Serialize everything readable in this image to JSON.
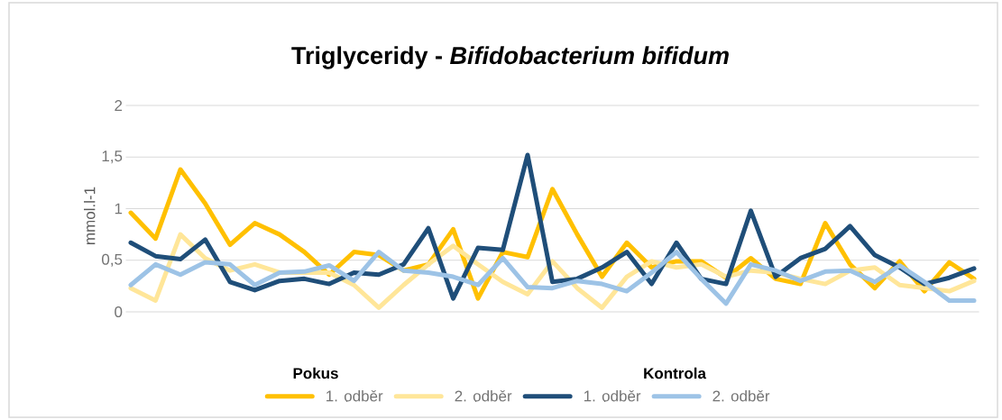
{
  "chart_data": {
    "type": "line",
    "title": "Triglyceridy - *Bifidobacterium  bifidum*",
    "ylabel": "mmol.l-1",
    "categories": [
      null,
      null,
      null,
      null,
      null,
      null,
      null,
      null,
      null,
      null,
      null,
      null,
      null,
      null,
      null,
      null,
      null,
      null,
      null,
      null,
      null,
      null,
      null,
      null,
      null,
      null,
      null,
      null,
      null,
      null,
      null,
      null,
      null,
      null,
      null
    ],
    "series": [
      {
        "name": "1. odběr",
        "color": "#ffc000",
        "values": [
          0.96,
          0.71,
          1.38,
          1.05,
          0.65,
          0.86,
          0.75,
          0.58,
          0.36,
          0.58,
          0.55,
          0.4,
          0.46,
          0.8,
          0.13,
          0.58,
          0.53,
          1.19,
          0.75,
          0.34,
          0.67,
          0.43,
          0.49,
          0.49,
          0.33,
          0.52,
          0.32,
          0.27,
          0.86,
          0.46,
          0.23,
          0.49,
          0.2,
          0.48,
          0.32
        ]
      },
      {
        "name": "2. odběr",
        "color": "#ffe699",
        "values": [
          0.23,
          0.11,
          0.75,
          0.52,
          0.4,
          0.46,
          0.38,
          0.38,
          0.38,
          0.26,
          0.04,
          0.26,
          0.46,
          0.64,
          0.46,
          0.29,
          0.17,
          0.49,
          0.23,
          0.04,
          0.34,
          0.49,
          0.43,
          0.46,
          0.34,
          0.4,
          0.38,
          0.32,
          0.27,
          0.4,
          0.43,
          0.26,
          0.23,
          0.2,
          0.3
        ]
      },
      {
        "name": "1. odběr",
        "color": "#1f4e79",
        "values": [
          0.67,
          0.54,
          0.51,
          0.7,
          0.29,
          0.21,
          0.3,
          0.32,
          0.27,
          0.38,
          0.36,
          0.46,
          0.81,
          0.13,
          0.62,
          0.6,
          1.52,
          0.29,
          0.32,
          0.43,
          0.58,
          0.27,
          0.67,
          0.32,
          0.27,
          0.98,
          0.34,
          0.52,
          0.61,
          0.83,
          0.55,
          0.43,
          0.27,
          0.33,
          0.42
        ]
      },
      {
        "name": "2. odběr",
        "color": "#9dc3e6",
        "values": [
          0.26,
          0.46,
          0.36,
          0.48,
          0.46,
          0.26,
          0.38,
          0.39,
          0.45,
          0.3,
          0.58,
          0.4,
          0.38,
          0.34,
          0.26,
          0.52,
          0.24,
          0.23,
          0.3,
          0.27,
          0.2,
          0.38,
          0.58,
          0.32,
          0.08,
          0.46,
          0.4,
          0.3,
          0.39,
          0.4,
          0.29,
          0.45,
          0.29,
          0.11,
          0.11
        ]
      }
    ],
    "ylim": [
      0,
      2
    ],
    "yticks": [
      0,
      {
        "value": 0.5,
        "label": "0,5"
      },
      1,
      {
        "value": 1.5,
        "label": "1,5"
      },
      2
    ],
    "grid": "y",
    "legend": "bottom",
    "tick_labels": "y",
    "marker": "none",
    "line_style": "solid",
    "annotations": [
      "Pokus",
      "Kontrola"
    ]
  }
}
